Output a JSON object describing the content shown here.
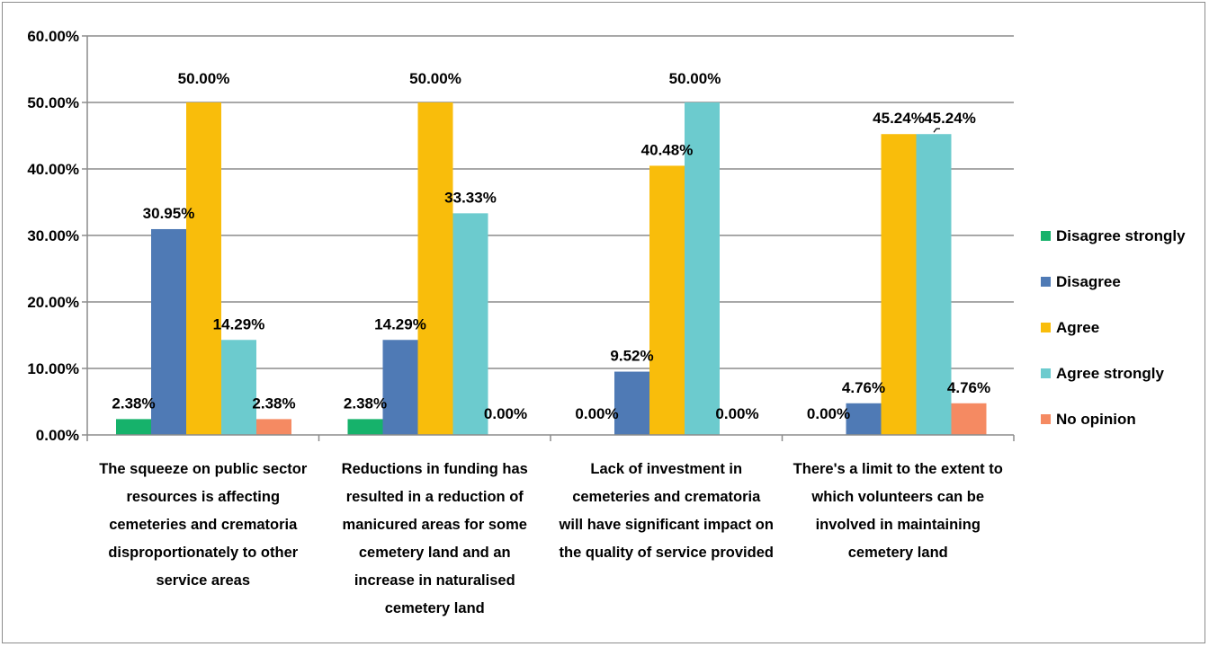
{
  "chart_data": {
    "type": "bar",
    "categories": [
      "The squeeze on public sector resources is affecting cemeteries and crematoria disproportionately to other service areas",
      "Reductions in funding has resulted in a reduction of manicured areas for some cemetery land and an increase in naturalised cemetery land",
      "Lack of investment in cemeteries and crematoria will have significant impact on the quality of service provided",
      "There's a limit to the extent to which volunteers can be involved in maintaining cemetery land"
    ],
    "category_lines": [
      [
        "The squeeze on public sector",
        "resources is affecting",
        "cemeteries and crematoria",
        "disproportionately to other",
        "service areas"
      ],
      [
        "Reductions in funding has",
        "resulted in a reduction of",
        "manicured areas for some",
        "cemetery land and an",
        "increase in naturalised",
        "cemetery land"
      ],
      [
        "Lack of investment in",
        "cemeteries and crematoria",
        "will have significant impact on",
        "the quality of service provided"
      ],
      [
        "There's a limit to the extent to",
        "which volunteers can be",
        "involved in maintaining",
        "cemetery land"
      ]
    ],
    "series": [
      {
        "name": "Disagree strongly",
        "color": "#16b26b",
        "values": [
          2.38,
          2.38,
          0.0,
          0.0
        ]
      },
      {
        "name": "Disagree",
        "color": "#4f7ab5",
        "values": [
          30.95,
          14.29,
          9.52,
          4.76
        ]
      },
      {
        "name": "Agree",
        "color": "#f9bd0b",
        "values": [
          50.0,
          50.0,
          40.48,
          45.24
        ]
      },
      {
        "name": "Agree strongly",
        "color": "#6ccbce",
        "values": [
          14.29,
          33.33,
          50.0,
          45.24
        ]
      },
      {
        "name": "No opinion",
        "color": "#f58a62",
        "values": [
          2.38,
          0.0,
          0.0,
          4.76
        ]
      }
    ],
    "data_labels": [
      [
        "2.38%",
        "2.38%",
        "0.00%",
        "0.00%"
      ],
      [
        "30.95%",
        "14.29%",
        "9.52%",
        "4.76%"
      ],
      [
        "50.00%",
        "50.00%",
        "40.48%",
        "45.24%"
      ],
      [
        "14.29%",
        "33.33%",
        "50.00%",
        "45.24%"
      ],
      [
        "2.38%",
        "0.00%",
        "0.00%",
        "4.76%"
      ]
    ],
    "y_ticks": [
      "0.00%",
      "10.00%",
      "20.00%",
      "30.00%",
      "40.00%",
      "50.00%",
      "60.00%"
    ],
    "ylim": [
      0,
      60
    ],
    "y_step": 10,
    "grid": true,
    "legend_position": "right",
    "title": "",
    "xlabel": "",
    "ylabel": ""
  }
}
